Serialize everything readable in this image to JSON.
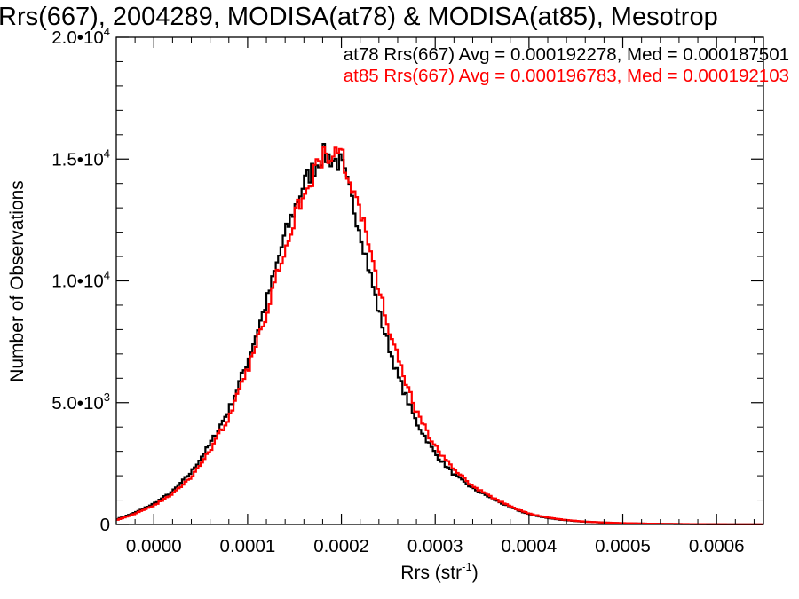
{
  "chart_data": {
    "type": "histogram",
    "title": "Rrs(667), 2004289, MODISA(at78) & MODISA(at85), Mesotrop",
    "xlabel": {
      "base": "Rrs (str",
      "sup": "-1",
      "tail": ")"
    },
    "ylabel": "Number of Observations",
    "xlim": [
      -4e-05,
      0.00065
    ],
    "ylim": [
      0,
      20000
    ],
    "x_ticks": [
      {
        "value": 0.0,
        "label": "0.0000"
      },
      {
        "value": 0.0001,
        "label": "0.0001"
      },
      {
        "value": 0.0002,
        "label": "0.0002"
      },
      {
        "value": 0.0003,
        "label": "0.0003"
      },
      {
        "value": 0.0004,
        "label": "0.0004"
      },
      {
        "value": 0.0005,
        "label": "0.0005"
      },
      {
        "value": 0.0006,
        "label": "0.0006"
      }
    ],
    "y_ticks": [
      {
        "value": 0,
        "mantissa": "0",
        "exp": ""
      },
      {
        "value": 5000,
        "mantissa": "5.0•10",
        "exp": "3"
      },
      {
        "value": 10000,
        "mantissa": "1.0•10",
        "exp": "4"
      },
      {
        "value": 15000,
        "mantissa": "1.5•10",
        "exp": "4"
      },
      {
        "value": 20000,
        "mantissa": "2.0•10",
        "exp": "4"
      }
    ],
    "grid": false,
    "legend_position": "top-right",
    "series": [
      {
        "name": "at78",
        "color": "#000000",
        "stat_text": "at78 Rrs(667) Avg = 0.000192278, Med = 0.000187501",
        "points": [
          [
            -4e-05,
            200
          ],
          [
            -2e-05,
            480
          ],
          [
            0.0,
            850
          ],
          [
            2e-05,
            1350
          ],
          [
            4e-05,
            2150
          ],
          [
            6e-05,
            3300
          ],
          [
            8e-05,
            4700
          ],
          [
            0.0001,
            6700
          ],
          [
            0.00012,
            9100
          ],
          [
            0.00014,
            11900
          ],
          [
            0.00016,
            14000
          ],
          [
            0.00018,
            15200
          ],
          [
            0.0002,
            14800
          ],
          [
            0.00022,
            12100
          ],
          [
            0.00024,
            8700
          ],
          [
            0.00026,
            6100
          ],
          [
            0.00028,
            4200
          ],
          [
            0.0003,
            2900
          ],
          [
            0.00032,
            2050
          ],
          [
            0.00034,
            1480
          ],
          [
            0.00036,
            1080
          ],
          [
            0.00038,
            700
          ],
          [
            0.0004,
            420
          ],
          [
            0.00042,
            260
          ],
          [
            0.00044,
            170
          ],
          [
            0.00046,
            110
          ],
          [
            0.00048,
            75
          ],
          [
            0.0005,
            50
          ],
          [
            0.00053,
            30
          ],
          [
            0.00056,
            18
          ],
          [
            0.0006,
            8
          ],
          [
            0.00065,
            3
          ]
        ]
      },
      {
        "name": "at85",
        "color": "#ff0000",
        "stat_text": "at85 Rrs(667) Avg = 0.000196783, Med = 0.000192103",
        "points": [
          [
            -4e-05,
            180
          ],
          [
            -2e-05,
            430
          ],
          [
            0.0,
            780
          ],
          [
            2e-05,
            1250
          ],
          [
            4e-05,
            1950
          ],
          [
            6e-05,
            3050
          ],
          [
            8e-05,
            4400
          ],
          [
            0.0001,
            6300
          ],
          [
            0.00012,
            8700
          ],
          [
            0.00014,
            11500
          ],
          [
            0.00016,
            13700
          ],
          [
            0.00018,
            15100
          ],
          [
            0.0002,
            15200
          ],
          [
            0.00022,
            12900
          ],
          [
            0.00024,
            9600
          ],
          [
            0.00026,
            6800
          ],
          [
            0.00028,
            4600
          ],
          [
            0.0003,
            3200
          ],
          [
            0.00032,
            2250
          ],
          [
            0.00034,
            1580
          ],
          [
            0.00036,
            1120
          ],
          [
            0.00038,
            740
          ],
          [
            0.0004,
            440
          ],
          [
            0.00042,
            280
          ],
          [
            0.00044,
            180
          ],
          [
            0.00046,
            115
          ],
          [
            0.00048,
            80
          ],
          [
            0.0005,
            55
          ],
          [
            0.00053,
            32
          ],
          [
            0.00056,
            20
          ],
          [
            0.0006,
            9
          ],
          [
            0.00065,
            3
          ]
        ]
      }
    ]
  }
}
